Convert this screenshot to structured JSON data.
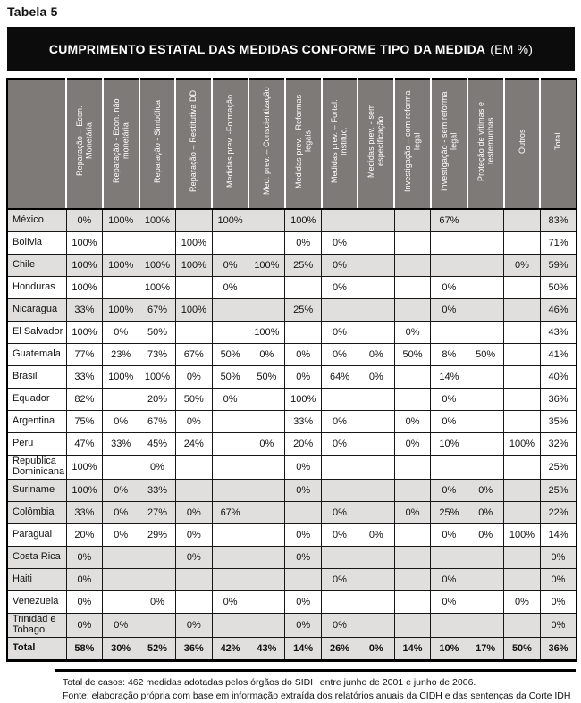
{
  "page_label": "Tabela 5",
  "table": {
    "title": "CUMPRIMENTO ESTATAL DAS MEDIDAS CONFORME TIPO DA MEDIDA",
    "title_suffix": "(EM %)",
    "columns": [
      "Reparação – Econ.\nMonetária",
      "Reparação - Econ. não\nmonetária",
      "Reparação - Simbólica",
      "Reparação – Restitutiva DD",
      "Medidas prev. -Formação",
      "Med. prev. – Conscientização",
      "Medidas prev. - Reformas\nlegais",
      "Medidas prev. – Fortal.\nInstituc.",
      "Medidas prev. - sem\nespecificação",
      "Investigação – com reforma\nlegal",
      "Investigação - sem reforma\nlegal",
      "Proteção de vítimas e\ntestemunhas",
      "Outros",
      "Total"
    ],
    "rows": [
      {
        "country": "México",
        "shaded": true,
        "values": [
          "0%",
          "100%",
          "100%",
          "",
          "100%",
          "",
          "100%",
          "",
          "",
          "",
          "67%",
          "",
          "",
          "83%"
        ]
      },
      {
        "country": "Bolívia",
        "shaded": false,
        "values": [
          "100%",
          "",
          "",
          "100%",
          "",
          "",
          "0%",
          "0%",
          "",
          "",
          "",
          "",
          "",
          "71%"
        ]
      },
      {
        "country": "Chile",
        "shaded": true,
        "values": [
          "100%",
          "100%",
          "100%",
          "100%",
          "0%",
          "100%",
          "25%",
          "0%",
          "",
          "",
          "",
          "",
          "0%",
          "59%"
        ]
      },
      {
        "country": "Honduras",
        "shaded": false,
        "values": [
          "100%",
          "",
          "100%",
          "",
          "0%",
          "",
          "",
          "0%",
          "",
          "",
          "0%",
          "",
          "",
          "50%"
        ]
      },
      {
        "country": "Nicarágua",
        "shaded": true,
        "values": [
          "33%",
          "100%",
          "67%",
          "100%",
          "",
          "",
          "25%",
          "",
          "",
          "",
          "0%",
          "",
          "",
          "46%"
        ]
      },
      {
        "country": "El Salvador",
        "shaded": false,
        "values": [
          "100%",
          "0%",
          "50%",
          "",
          "",
          "100%",
          "",
          "0%",
          "",
          "0%",
          "",
          "",
          "",
          "43%"
        ]
      },
      {
        "country": "Guatemala",
        "shaded": false,
        "values": [
          "77%",
          "23%",
          "73%",
          "67%",
          "50%",
          "0%",
          "0%",
          "0%",
          "0%",
          "50%",
          "8%",
          "50%",
          "",
          "41%"
        ]
      },
      {
        "country": "Brasil",
        "shaded": false,
        "values": [
          "33%",
          "100%",
          "100%",
          "0%",
          "50%",
          "50%",
          "0%",
          "64%",
          "0%",
          "",
          "14%",
          "",
          "",
          "40%"
        ]
      },
      {
        "country": "Equador",
        "shaded": false,
        "values": [
          "82%",
          "",
          "20%",
          "50%",
          "0%",
          "",
          "100%",
          "",
          "",
          "",
          "0%",
          "",
          "",
          "36%"
        ]
      },
      {
        "country": "Argentina",
        "shaded": false,
        "values": [
          "75%",
          "0%",
          "67%",
          "0%",
          "",
          "",
          "33%",
          "0%",
          "",
          "0%",
          "0%",
          "",
          "",
          "35%"
        ]
      },
      {
        "country": "Peru",
        "shaded": false,
        "values": [
          "47%",
          "33%",
          "45%",
          "24%",
          "",
          "0%",
          "20%",
          "0%",
          "",
          "0%",
          "10%",
          "",
          "100%",
          "32%"
        ]
      },
      {
        "country": "Republica Dominicana",
        "shaded": false,
        "values": [
          "100%",
          "",
          "0%",
          "",
          "",
          "",
          "0%",
          "",
          "",
          "",
          "",
          "",
          "",
          "25%"
        ]
      },
      {
        "country": "Suriname",
        "shaded": true,
        "values": [
          "100%",
          "0%",
          "33%",
          "",
          "",
          "",
          "0%",
          "",
          "",
          "",
          "0%",
          "0%",
          "",
          "25%"
        ]
      },
      {
        "country": "Colômbia",
        "shaded": true,
        "values": [
          "33%",
          "0%",
          "27%",
          "0%",
          "67%",
          "",
          "",
          "0%",
          "",
          "0%",
          "25%",
          "0%",
          "",
          "22%"
        ]
      },
      {
        "country": "Paraguai",
        "shaded": false,
        "values": [
          "20%",
          "0%",
          "29%",
          "0%",
          "",
          "",
          "0%",
          "0%",
          "0%",
          "",
          "0%",
          "0%",
          "100%",
          "14%"
        ]
      },
      {
        "country": "Costa Rica",
        "shaded": true,
        "values": [
          "0%",
          "",
          "",
          "0%",
          "",
          "",
          "0%",
          "",
          "",
          "",
          "",
          "",
          "",
          "0%"
        ]
      },
      {
        "country": "Haiti",
        "shaded": true,
        "values": [
          "0%",
          "",
          "",
          "",
          "",
          "",
          "",
          "0%",
          "",
          "",
          "0%",
          "",
          "",
          "0%"
        ]
      },
      {
        "country": "Venezuela",
        "shaded": false,
        "values": [
          "0%",
          "",
          "0%",
          "",
          "0%",
          "",
          "0%",
          "",
          "",
          "",
          "0%",
          "",
          "0%",
          "0%"
        ]
      },
      {
        "country": "Trinidad e Tobago",
        "shaded": true,
        "values": [
          "0%",
          "0%",
          "",
          "0%",
          "",
          "",
          "0%",
          "0%",
          "",
          "",
          "",
          "",
          "",
          "0%"
        ]
      }
    ],
    "total_row": {
      "label": "Total",
      "values": [
        "58%",
        "30%",
        "52%",
        "36%",
        "42%",
        "43%",
        "14%",
        "26%",
        "0%",
        "14%",
        "10%",
        "17%",
        "50%",
        "36%"
      ]
    }
  },
  "footnotes": [
    "Total de casos: 462 medidas adotadas pelos órgãos do SIDH entre junho de 2001 e junho de 2006.",
    "Fonte: elaboração própria com base em informação extraída dos relatórios anuais da CIDH e das sentenças da Corte IDH"
  ],
  "colors": {
    "title_bar_bg": "#0c0c0c",
    "header_bg": "#7d7a77",
    "shaded_row": "#e1dfdd"
  }
}
